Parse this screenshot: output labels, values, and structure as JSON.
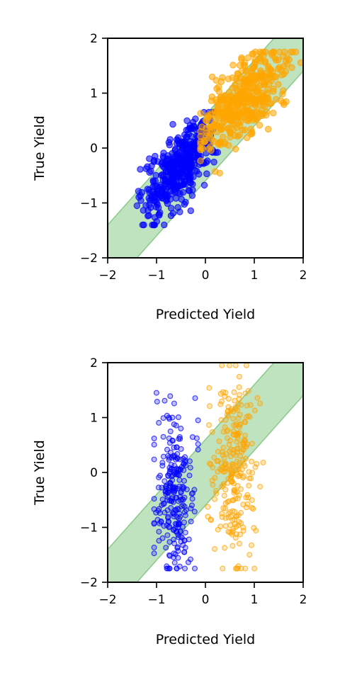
{
  "colors": {
    "class_a": "#0000ff",
    "class_b": "#ffa500",
    "band_fill": "#2ca02c",
    "axis": "#000000"
  },
  "chart_data": [
    {
      "type": "scatter",
      "panel": "top",
      "xlabel": "Predicted Yield",
      "ylabel": "True Yield",
      "xlim": [
        -2,
        2
      ],
      "ylim": [
        -2,
        2
      ],
      "xticks": [
        "−2",
        "−1",
        "0",
        "1",
        "2"
      ],
      "yticks": [
        "−2",
        "−1",
        "0",
        "1",
        "2"
      ],
      "grid": false,
      "band": {
        "center": "y = x",
        "half_width": 0.6
      },
      "series": [
        {
          "color": "#0000ff",
          "count": 420,
          "x_center": -0.55,
          "x_spread": 0.35,
          "y_center": -0.35,
          "y_spread": 0.55,
          "x_range": [
            -1.4,
            0.25
          ],
          "y_range": [
            -1.4,
            0.65
          ],
          "style": "dense cloud"
        },
        {
          "color": "#ffa500",
          "count": 420,
          "x_center": 0.75,
          "x_spread": 0.45,
          "y_center": 0.85,
          "y_spread": 0.55,
          "x_range": [
            -0.1,
            1.95
          ],
          "y_range": [
            -0.75,
            1.75
          ],
          "style": "dense cloud"
        }
      ]
    },
    {
      "type": "scatter",
      "panel": "bottom",
      "xlabel": "Predicted Yield",
      "ylabel": "True Yield",
      "xlim": [
        -2,
        2
      ],
      "ylim": [
        -2,
        2
      ],
      "xticks": [
        "−2",
        "−1",
        "0",
        "1",
        "2"
      ],
      "yticks": [
        "−2",
        "−1",
        "0",
        "1",
        "2"
      ],
      "grid": false,
      "band": {
        "center": "y = x",
        "half_width": 0.6
      },
      "series": [
        {
          "color": "#0000ff",
          "count": 260,
          "x_center": -0.62,
          "x_spread": 0.2,
          "y_center": -0.35,
          "y_spread": 0.8,
          "x_range": [
            -1.05,
            -0.15
          ],
          "y_range": [
            -1.75,
            1.45
          ],
          "style": "sparse points"
        },
        {
          "color": "#ffa500",
          "count": 260,
          "x_center": 0.6,
          "x_spread": 0.22,
          "y_center": 0.15,
          "y_spread": 0.9,
          "x_range": [
            0.05,
            1.3
          ],
          "y_range": [
            -1.75,
            1.95
          ],
          "style": "sparse points"
        }
      ]
    }
  ]
}
